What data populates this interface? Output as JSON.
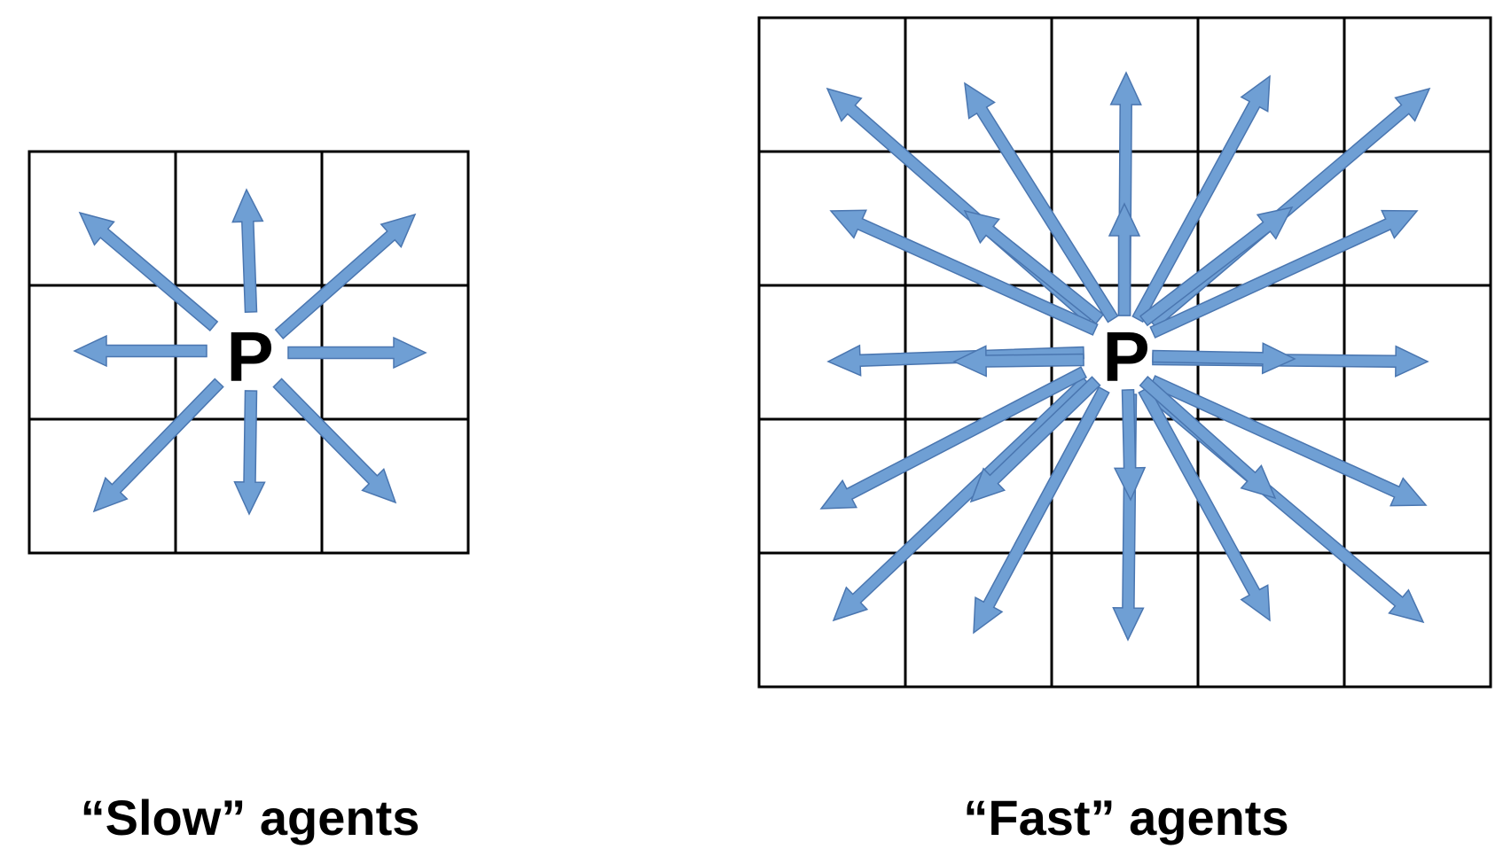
{
  "colors": {
    "arrow_fill": "#6f9fd4",
    "arrow_stroke": "#4a76b0",
    "grid_line": "#000000",
    "background": "#ffffff"
  },
  "slow_panel": {
    "caption": "“Slow” agents",
    "grid_size": 3,
    "center_label": "P",
    "arrow_count": 8
  },
  "fast_panel": {
    "caption": "“Fast” agents",
    "grid_size": 5,
    "center_label": "P",
    "arrow_count": 24
  }
}
